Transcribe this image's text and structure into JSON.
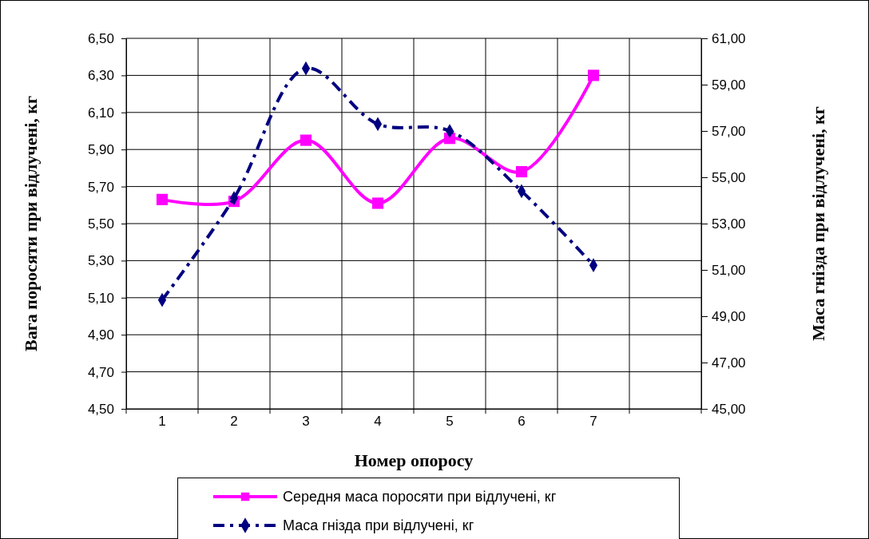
{
  "chart_data": {
    "type": "line",
    "xlabel": "Номер опоросу",
    "ylabel": "Вага поросяти при відлучені, кг",
    "y2label": "Маса гнізда при відлучені, кг",
    "categories": [
      "1",
      "2",
      "3",
      "4",
      "5",
      "6",
      "7",
      null
    ],
    "series": [
      {
        "name": "Середня маса поросяти при відлучені, кг",
        "color": "#ff00ff",
        "marker": "square",
        "line_style": "solid",
        "values": [
          5.63,
          5.62,
          5.95,
          5.61,
          5.96,
          5.78,
          6.3,
          null
        ]
      },
      {
        "name": "Маса гнізда при відлучені, кг",
        "color": "#000080",
        "marker": "diamond",
        "line_style": "dashed",
        "axis": "y2",
        "values": [
          49.7,
          54.1,
          59.7,
          57.3,
          57.0,
          54.4,
          51.2,
          null
        ]
      }
    ],
    "ylim": [
      4.5,
      6.5
    ],
    "yticks": [
      {
        "value": 4.5,
        "label": "4,50"
      },
      {
        "value": 4.7,
        "label": "4,70"
      },
      {
        "value": 4.9,
        "label": "4,90"
      },
      {
        "value": 5.1,
        "label": "5,10"
      },
      {
        "value": 5.3,
        "label": "5,30"
      },
      {
        "value": 5.5,
        "label": "5,50"
      },
      {
        "value": 5.7,
        "label": "5,70"
      },
      {
        "value": 5.9,
        "label": "5,90"
      },
      {
        "value": 6.1,
        "label": "6,10"
      },
      {
        "value": 6.3,
        "label": "6,30"
      },
      {
        "value": 6.5,
        "label": "6,50"
      }
    ],
    "y2lim": [
      45,
      61
    ],
    "y2ticks": [
      {
        "value": 45,
        "label": "45,00"
      },
      {
        "value": 47,
        "label": "47,00"
      },
      {
        "value": 49,
        "label": "49,00"
      },
      {
        "value": 51,
        "label": "51,00"
      },
      {
        "value": 53,
        "label": "53,00"
      },
      {
        "value": 55,
        "label": "55,00"
      },
      {
        "value": 57,
        "label": "57,00"
      },
      {
        "value": 59,
        "label": "59,00"
      },
      {
        "value": 61,
        "label": "61,00"
      }
    ],
    "grid": true,
    "legend": "bottom"
  }
}
